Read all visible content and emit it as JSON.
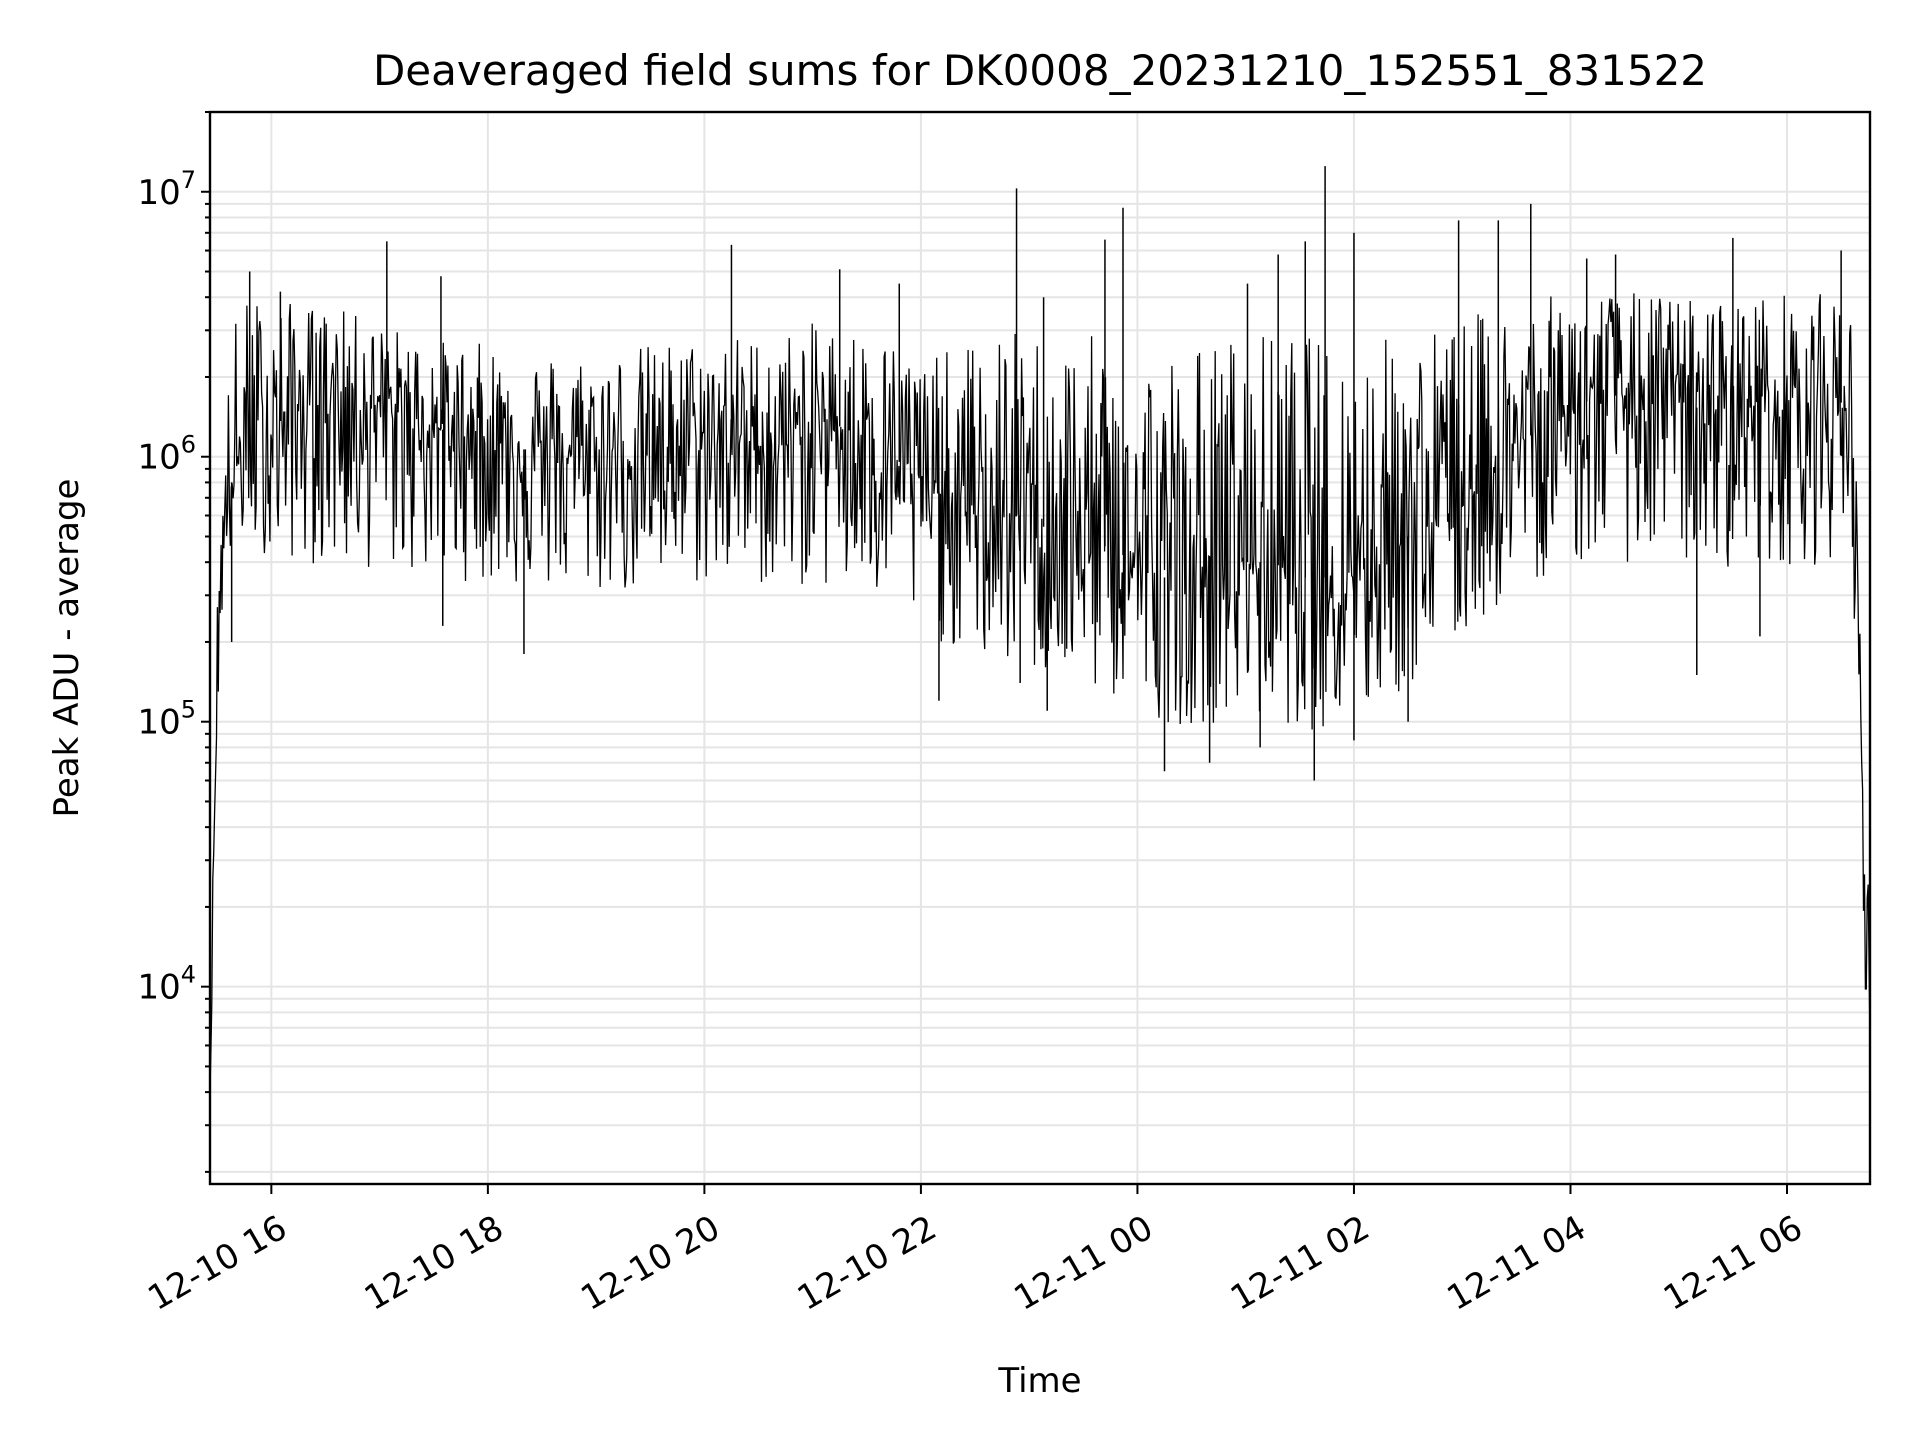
{
  "chart_data": {
    "type": "line",
    "title": "Deaveraged field sums for DK0008_20231210_152551_831522",
    "xlabel": "Time",
    "ylabel": "Peak ADU - average",
    "yscale": "log",
    "ylim": [
      1800,
      20000000
    ],
    "xlim": [
      "2023-12-10 15:26",
      "2023-12-11 06:46"
    ],
    "grid": true,
    "grid_minor": true,
    "line_color": "#000000",
    "x_ticks": [
      {
        "value": "2023-12-10 16:00",
        "label": "12-10 16"
      },
      {
        "value": "2023-12-10 18:00",
        "label": "12-10 18"
      },
      {
        "value": "2023-12-10 20:00",
        "label": "12-10 20"
      },
      {
        "value": "2023-12-10 22:00",
        "label": "12-10 22"
      },
      {
        "value": "2023-12-11 00:00",
        "label": "12-11 00"
      },
      {
        "value": "2023-12-11 02:00",
        "label": "12-11 02"
      },
      {
        "value": "2023-12-11 04:00",
        "label": "12-11 04"
      },
      {
        "value": "2023-12-11 06:00",
        "label": "12-11 06"
      }
    ],
    "y_ticks": [
      {
        "value": 10000,
        "base": "10",
        "exp": "4"
      },
      {
        "value": 100000,
        "base": "10",
        "exp": "5"
      },
      {
        "value": 1000000,
        "base": "10",
        "exp": "6"
      },
      {
        "value": 10000000,
        "base": "10",
        "exp": "7"
      }
    ],
    "series": [
      {
        "x": [
          "2023-12-10 15:26",
          "2023-12-10 15:27",
          "2023-12-10 15:28",
          "2023-12-10 15:29",
          "2023-12-10 15:30",
          "2023-12-10 15:31",
          "2023-12-10 15:32",
          "2023-12-10 15:34",
          "2023-12-10 15:36",
          "2023-12-10 15:38",
          "2023-12-10 15:40",
          "2023-12-10 15:45",
          "2023-12-10 15:50",
          "2023-12-10 16:00",
          "2023-12-10 16:15",
          "2023-12-10 16:30",
          "2023-12-10 16:45",
          "2023-12-10 17:00",
          "2023-12-10 17:15",
          "2023-12-10 17:30",
          "2023-12-10 17:45",
          "2023-12-10 18:00",
          "2023-12-10 18:15",
          "2023-12-10 18:30",
          "2023-12-10 18:45",
          "2023-12-10 19:00",
          "2023-12-10 19:15",
          "2023-12-10 19:30",
          "2023-12-10 19:45",
          "2023-12-10 20:00",
          "2023-12-10 20:15",
          "2023-12-10 20:30",
          "2023-12-10 20:45",
          "2023-12-10 21:00",
          "2023-12-10 21:15",
          "2023-12-10 21:30",
          "2023-12-10 21:45",
          "2023-12-10 22:00",
          "2023-12-10 22:15",
          "2023-12-10 22:30",
          "2023-12-10 22:45",
          "2023-12-10 23:00",
          "2023-12-10 23:15",
          "2023-12-10 23:30",
          "2023-12-10 23:45",
          "2023-12-11 00:00",
          "2023-12-11 00:15",
          "2023-12-11 00:30",
          "2023-12-11 00:45",
          "2023-12-11 01:00",
          "2023-12-11 01:15",
          "2023-12-11 01:30",
          "2023-12-11 01:45",
          "2023-12-11 02:00",
          "2023-12-11 02:15",
          "2023-12-11 02:30",
          "2023-12-11 02:45",
          "2023-12-11 03:00",
          "2023-12-11 03:15",
          "2023-12-11 03:30",
          "2023-12-11 03:45",
          "2023-12-11 04:00",
          "2023-12-11 04:15",
          "2023-12-11 04:30",
          "2023-12-11 04:45",
          "2023-12-11 05:00",
          "2023-12-11 05:15",
          "2023-12-11 05:30",
          "2023-12-11 05:45",
          "2023-12-11 06:00",
          "2023-12-11 06:15",
          "2023-12-11 06:30",
          "2023-12-11 06:36",
          "2023-12-11 06:38",
          "2023-12-11 06:40",
          "2023-12-11 06:42",
          "2023-12-11 06:44",
          "2023-12-11 06:45",
          "2023-12-11 06:46"
        ],
        "y": [
          4000,
          9000,
          35000,
          60000,
          120000,
          200000,
          350000,
          500000,
          700000,
          800000,
          900000,
          1000000,
          1100000,
          1300000,
          1500000,
          1700000,
          1700000,
          1500000,
          1400000,
          1300000,
          1200000,
          1200000,
          1100000,
          1000000,
          1000000,
          1000000,
          1000000,
          1000000,
          1100000,
          1100000,
          1200000,
          1100000,
          1100000,
          1300000,
          1300000,
          1200000,
          1000000,
          800000,
          700000,
          600000,
          600000,
          600000,
          500000,
          500000,
          450000,
          400000,
          350000,
          350000,
          400000,
          400000,
          400000,
          350000,
          350000,
          400000,
          500000,
          500000,
          600000,
          700000,
          900000,
          1100000,
          1300000,
          1500000,
          1700000,
          1700000,
          1600000,
          1600000,
          1500000,
          1500000,
          1600000,
          1600000,
          1600000,
          1600000,
          1400000,
          600000,
          200000,
          50000,
          10000,
          25000,
          7000
        ],
        "y_high": [
          4000,
          11000,
          60000,
          150000,
          350000,
          600000,
          1000000,
          1500000,
          2000000,
          2500000,
          3500000,
          4000000,
          4200000,
          4000000,
          3800000,
          3700000,
          3500000,
          3200000,
          3000000,
          2800000,
          2700000,
          2700000,
          2600000,
          2500000,
          2500000,
          2500000,
          2600000,
          2700000,
          2800000,
          2800000,
          2900000,
          2900000,
          3000000,
          3200000,
          3200000,
          3000000,
          2800000,
          2500000,
          2500000,
          2800000,
          3000000,
          3000000,
          3000000,
          2900000,
          2800000,
          2700000,
          2600000,
          2700000,
          2900000,
          3000000,
          3000000,
          3000000,
          2800000,
          2800000,
          2900000,
          3000000,
          3200000,
          3400000,
          3600000,
          3800000,
          4000000,
          4200000,
          4300000,
          4200000,
          4200000,
          4100000,
          4000000,
          4000000,
          4100000,
          4200000,
          4200000,
          4000000,
          3500000,
          1500000,
          300000,
          60000,
          30000,
          40000,
          7000
        ],
        "y_low": [
          4000,
          8000,
          30000,
          50000,
          90000,
          150000,
          220000,
          300000,
          380000,
          420000,
          450000,
          480000,
          450000,
          420000,
          400000,
          380000,
          370000,
          370000,
          360000,
          350000,
          340000,
          330000,
          320000,
          310000,
          300000,
          300000,
          300000,
          300000,
          320000,
          320000,
          330000,
          320000,
          320000,
          320000,
          300000,
          280000,
          250000,
          220000,
          190000,
          170000,
          160000,
          150000,
          140000,
          130000,
          120000,
          110000,
          100000,
          95000,
          100000,
          100000,
          100000,
          95000,
          90000,
          95000,
          110000,
          130000,
          160000,
          200000,
          250000,
          300000,
          350000,
          380000,
          400000,
          400000,
          390000,
          390000,
          380000,
          380000,
          390000,
          390000,
          390000,
          380000,
          350000,
          200000,
          80000,
          20000,
          6000,
          15000,
          5000
        ]
      }
    ],
    "spikes": [
      {
        "x": "2023-12-10 15:48",
        "y": 5000000
      },
      {
        "x": "2023-12-10 16:05",
        "y": 4200000
      },
      {
        "x": "2023-12-10 17:04",
        "y": 6500000
      },
      {
        "x": "2023-12-10 17:34",
        "y": 4800000
      },
      {
        "x": "2023-12-10 20:15",
        "y": 6300000
      },
      {
        "x": "2023-12-10 21:15",
        "y": 5100000
      },
      {
        "x": "2023-12-10 21:48",
        "y": 4500000
      },
      {
        "x": "2023-12-10 22:53",
        "y": 10300000
      },
      {
        "x": "2023-12-10 23:08",
        "y": 4000000
      },
      {
        "x": "2023-12-10 23:42",
        "y": 6600000
      },
      {
        "x": "2023-12-10 23:52",
        "y": 8700000
      },
      {
        "x": "2023-12-11 01:01",
        "y": 4500000
      },
      {
        "x": "2023-12-11 01:18",
        "y": 5800000
      },
      {
        "x": "2023-12-11 01:33",
        "y": 6500000
      },
      {
        "x": "2023-12-11 01:44",
        "y": 12500000
      },
      {
        "x": "2023-12-11 02:00",
        "y": 7000000
      },
      {
        "x": "2023-12-11 02:58",
        "y": 7800000
      },
      {
        "x": "2023-12-11 03:20",
        "y": 7800000
      },
      {
        "x": "2023-12-11 03:38",
        "y": 9000000
      },
      {
        "x": "2023-12-11 04:09",
        "y": 5600000
      },
      {
        "x": "2023-12-11 04:25",
        "y": 5800000
      },
      {
        "x": "2023-12-11 05:30",
        "y": 6700000
      },
      {
        "x": "2023-12-11 06:30",
        "y": 6000000
      }
    ],
    "dips": [
      {
        "x": "2023-12-10 15:38",
        "y": 200000
      },
      {
        "x": "2023-12-10 17:35",
        "y": 230000
      },
      {
        "x": "2023-12-10 18:20",
        "y": 180000
      },
      {
        "x": "2023-12-10 22:10",
        "y": 120000
      },
      {
        "x": "2023-12-10 22:55",
        "y": 140000
      },
      {
        "x": "2023-12-10 23:10",
        "y": 110000
      },
      {
        "x": "2023-12-11 00:15",
        "y": 65000
      },
      {
        "x": "2023-12-11 00:40",
        "y": 70000
      },
      {
        "x": "2023-12-11 01:08",
        "y": 80000
      },
      {
        "x": "2023-12-11 01:38",
        "y": 60000
      },
      {
        "x": "2023-12-11 02:00",
        "y": 85000
      },
      {
        "x": "2023-12-11 02:30",
        "y": 100000
      },
      {
        "x": "2023-12-11 05:10",
        "y": 150000
      },
      {
        "x": "2023-12-11 05:45",
        "y": 210000
      }
    ]
  }
}
